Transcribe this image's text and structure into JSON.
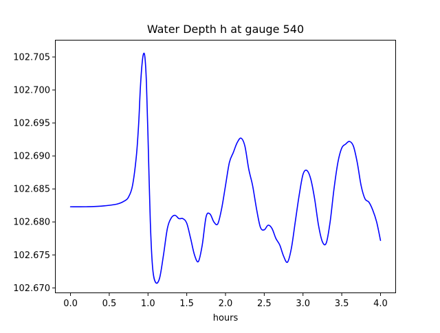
{
  "chart_data": {
    "type": "line",
    "title": "Water Depth h at gauge 540",
    "xlabel": "hours",
    "ylabel": "",
    "xlim": [
      -0.2,
      4.2
    ],
    "ylim": [
      102.6692,
      102.7076
    ],
    "x_ticks": [
      0.0,
      0.5,
      1.0,
      1.5,
      2.0,
      2.5,
      3.0,
      3.5,
      4.0
    ],
    "x_tick_labels": [
      "0.0",
      "0.5",
      "1.0",
      "1.5",
      "2.0",
      "2.5",
      "3.0",
      "3.5",
      "4.0"
    ],
    "y_ticks": [
      102.67,
      102.675,
      102.68,
      102.685,
      102.69,
      102.695,
      102.7,
      102.705
    ],
    "y_tick_labels": [
      "102.670",
      "102.675",
      "102.680",
      "102.685",
      "102.690",
      "102.695",
      "102.700",
      "102.705"
    ],
    "grid": false,
    "line_color": "#0000ff",
    "series": [
      {
        "x": [
          0.0,
          0.2,
          0.4,
          0.6,
          0.7,
          0.75,
          0.8,
          0.85,
          0.88,
          0.9,
          0.92,
          0.94,
          0.96,
          0.98,
          1.0,
          1.03,
          1.06,
          1.1,
          1.15,
          1.2,
          1.25,
          1.3,
          1.35,
          1.4,
          1.45,
          1.5,
          1.55,
          1.6,
          1.65,
          1.7,
          1.75,
          1.8,
          1.85,
          1.9,
          1.95,
          2.0,
          2.05,
          2.1,
          2.15,
          2.2,
          2.25,
          2.3,
          2.35,
          2.4,
          2.45,
          2.5,
          2.55,
          2.6,
          2.65,
          2.7,
          2.75,
          2.8,
          2.85,
          2.9,
          2.95,
          3.0,
          3.05,
          3.1,
          3.15,
          3.2,
          3.25,
          3.3,
          3.35,
          3.4,
          3.45,
          3.5,
          3.55,
          3.6,
          3.65,
          3.7,
          3.75,
          3.8,
          3.85,
          3.9,
          3.95,
          4.0
        ],
        "y": [
          102.6823,
          102.6823,
          102.6824,
          102.6827,
          102.6832,
          102.6838,
          102.6855,
          102.69,
          102.695,
          102.7,
          102.7035,
          102.7054,
          102.705,
          102.701,
          102.693,
          102.68,
          102.673,
          102.6708,
          102.6715,
          102.675,
          102.679,
          102.6806,
          102.681,
          102.6805,
          102.6805,
          102.6798,
          102.6775,
          102.675,
          102.674,
          102.6765,
          102.6808,
          102.6812,
          102.68,
          102.6797,
          102.682,
          102.6855,
          102.689,
          102.6905,
          102.692,
          102.6927,
          102.6915,
          102.688,
          102.6855,
          102.682,
          102.6792,
          102.6788,
          102.6795,
          102.679,
          102.6775,
          102.6765,
          102.6748,
          102.6739,
          102.676,
          102.68,
          102.684,
          102.6872,
          102.6878,
          102.6865,
          102.6835,
          102.6795,
          102.677,
          102.6768,
          102.68,
          102.685,
          102.689,
          102.6912,
          102.6918,
          102.6922,
          102.6915,
          102.689,
          102.6855,
          102.6835,
          102.683,
          102.6818,
          102.68,
          102.6772
        ]
      }
    ]
  }
}
